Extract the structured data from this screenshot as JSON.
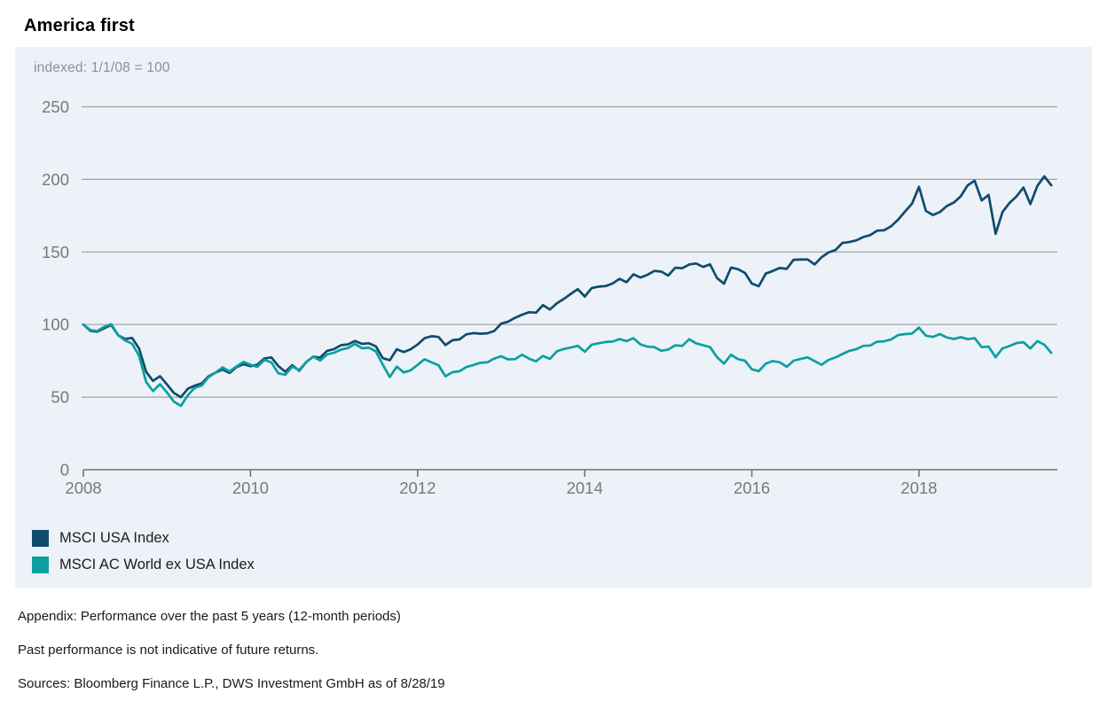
{
  "page": {
    "title": "America first"
  },
  "colors": {
    "panel_bg": "#edf1f8",
    "gridline": "#9fa3a6",
    "axis": "#6f7275",
    "tick_text": "#77797b",
    "note_text": "#8b9196",
    "usa_line": "#0e4c6d",
    "world_line": "#0b9fa0"
  },
  "chart_data": {
    "type": "line",
    "title": "America first",
    "note": "indexed: 1/1/08 = 100",
    "grid": true,
    "legend_position": "bottom-left",
    "x_axis": {
      "unit": "year",
      "start_year": 2008,
      "interval_months": 1,
      "end": 2019.67,
      "tick_years": [
        2008,
        2010,
        2012,
        2014,
        2016,
        2018
      ],
      "tick_labels": [
        "2008",
        "2010",
        "2012",
        "2014",
        "2016",
        "2018"
      ]
    },
    "y_axis": {
      "ticks": [
        0,
        50,
        100,
        150,
        200,
        250
      ],
      "range": [
        0,
        250
      ]
    },
    "series": [
      {
        "name": "MSCI USA Index",
        "color": "#0e4c6d",
        "values": [
          100,
          96,
          94.5,
          97,
          99,
          92.5,
          90,
          91,
          84,
          68,
          62,
          64,
          59,
          53,
          49.5,
          55,
          58,
          59.5,
          64,
          66.5,
          68.5,
          67,
          71,
          73.5,
          70.5,
          72.5,
          76.5,
          78,
          71.5,
          67.5,
          71.5,
          68.5,
          74.5,
          77.5,
          77.5,
          82.5,
          84,
          86.5,
          86,
          88.5,
          87.5,
          86.5,
          84.5,
          77,
          75,
          83,
          81,
          82.5,
          86.5,
          90,
          92.5,
          91.5,
          86,
          89.5,
          90.5,
          92.5,
          94.5,
          93,
          94,
          95.5,
          100,
          101.5,
          104.5,
          106.5,
          109,
          107.5,
          112.5,
          110.5,
          114.5,
          118.5,
          121.5,
          124,
          120,
          125,
          125.5,
          126,
          128.5,
          131,
          129,
          134,
          131.5,
          134.5,
          137.5,
          136.5,
          133,
          140,
          139,
          140.5,
          142.5,
          139.5,
          141.5,
          132.5,
          128.5,
          138.5,
          139,
          136,
          128.5,
          127,
          135.5,
          136.5,
          138.5,
          139,
          144.5,
          144.5,
          144.5,
          141.5,
          146.5,
          149,
          151.5,
          156,
          156.5,
          158.5,
          160.5,
          161.5,
          164.5,
          165,
          168,
          172,
          177.5,
          184,
          195,
          179,
          176,
          177.5,
          182,
          184,
          189,
          196,
          199.5,
          185.5,
          189,
          163,
          177,
          184,
          187.5,
          194.5,
          182.5,
          195,
          203,
          196
        ]
      },
      {
        "name": "MSCI AC World ex USA Index",
        "color": "#0b9fa0",
        "values": [
          100,
          96.5,
          95,
          98,
          99.5,
          92.5,
          89,
          87,
          79,
          61,
          55,
          58.5,
          53.5,
          47,
          43.5,
          50.5,
          56.5,
          58,
          63.5,
          66.5,
          70,
          68,
          71.5,
          75,
          71.5,
          71,
          75.5,
          74.5,
          66.5,
          65.5,
          70.5,
          69,
          74.5,
          77.5,
          75.5,
          80,
          81.5,
          83.5,
          83.5,
          86.5,
          84.5,
          83.5,
          81,
          72.5,
          63.5,
          71,
          67,
          68,
          72.5,
          75.5,
          74.5,
          72,
          64.5,
          67.5,
          68.5,
          70,
          72.5,
          73,
          74,
          76.5,
          77.5,
          75.5,
          76,
          79,
          77,
          74,
          77.5,
          76.5,
          81.5,
          84,
          84.5,
          85,
          82,
          86,
          86.5,
          87.5,
          88.5,
          89.5,
          88.5,
          90,
          85.5,
          85,
          85,
          82,
          82,
          86.5,
          85.5,
          89,
          87.5,
          85.5,
          84.5,
          78,
          73.5,
          78.5,
          77,
          75.5,
          69.5,
          68.5,
          73.5,
          74.5,
          73.5,
          71.5,
          75,
          76,
          77,
          75,
          72.5,
          75,
          77.5,
          79.5,
          81.5,
          83.5,
          85.5,
          85.5,
          88,
          88.5,
          90,
          92.5,
          93,
          94.5,
          98,
          93,
          92,
          93.5,
          91.5,
          90,
          92,
          90,
          91,
          84.5,
          84.5,
          78,
          83,
          85.5,
          86.5,
          88,
          83,
          88,
          87,
          80.5
        ]
      }
    ]
  },
  "footnotes": {
    "appendix": "Appendix: Performance over the past 5 years (12-month periods)",
    "disclaimer": "Past performance is not indicative of future returns.",
    "sources": "Sources: Bloomberg Finance L.P., DWS Investment GmbH as of 8/28/19"
  }
}
